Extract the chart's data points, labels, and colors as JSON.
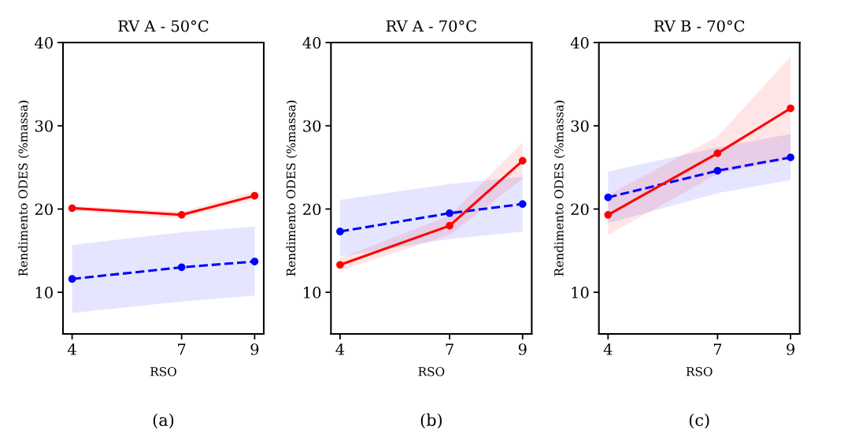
{
  "chart_data": [
    {
      "type": "line",
      "title": "RV A - 50°C",
      "xlabel": "RSO",
      "ylabel": "Rendimento ODES (%massa)",
      "annotations": [
        "(a)"
      ],
      "x": [
        4,
        7,
        9
      ],
      "xlim": [
        3.75,
        9.25
      ],
      "xticks": [
        4,
        7,
        9
      ],
      "ylim": [
        5,
        40
      ],
      "yticks": [
        10,
        20,
        30,
        40
      ],
      "marker": "circle",
      "grid": false,
      "legend": false,
      "series": [
        {
          "color": "#0000ff",
          "line_style": "dashed",
          "values": [
            11.6,
            13.0,
            13.7
          ],
          "lower": [
            7.5,
            8.9,
            9.6
          ],
          "upper": [
            15.7,
            17.2,
            17.9
          ]
        },
        {
          "color": "#ff0000",
          "line_style": "solid",
          "values": [
            20.1,
            19.3,
            21.6
          ],
          "lower": [
            19.8,
            18.9,
            21.1
          ],
          "upper": [
            20.4,
            19.7,
            22.1
          ]
        }
      ]
    },
    {
      "type": "line",
      "title": "RV A - 70°C",
      "xlabel": "RSO",
      "ylabel": "Rendimento ODES (%massa)",
      "annotations": [
        "(b)"
      ],
      "x": [
        4,
        7,
        9
      ],
      "xlim": [
        3.75,
        9.25
      ],
      "xticks": [
        4,
        7,
        9
      ],
      "ylim": [
        5,
        40
      ],
      "yticks": [
        10,
        20,
        30,
        40
      ],
      "marker": "circle",
      "grid": false,
      "legend": false,
      "series": [
        {
          "color": "#0000ff",
          "line_style": "dashed",
          "values": [
            17.3,
            19.5,
            20.6
          ],
          "lower": [
            14.3,
            16.4,
            17.3
          ],
          "upper": [
            21.1,
            23.0,
            23.9
          ]
        },
        {
          "color": "#ff0000",
          "line_style": "solid",
          "values": [
            13.3,
            18.0,
            25.8
          ],
          "lower": [
            12.6,
            16.9,
            23.6
          ],
          "upper": [
            14.1,
            19.2,
            28.0
          ]
        }
      ]
    },
    {
      "type": "line",
      "title": "RV B - 70°C",
      "xlabel": "RSO",
      "ylabel": "Rendimento ODES (%massa)",
      "annotations": [
        "(c)"
      ],
      "x": [
        4,
        7,
        9
      ],
      "xlim": [
        3.75,
        9.25
      ],
      "xticks": [
        4,
        7,
        9
      ],
      "ylim": [
        5,
        40
      ],
      "yticks": [
        10,
        20,
        30,
        40
      ],
      "marker": "circle",
      "grid": false,
      "legend": false,
      "series": [
        {
          "color": "#0000ff",
          "line_style": "dashed",
          "values": [
            21.4,
            24.6,
            26.2
          ],
          "lower": [
            18.3,
            21.9,
            23.5
          ],
          "upper": [
            24.5,
            27.4,
            29.0
          ]
        },
        {
          "color": "#ff0000",
          "line_style": "solid",
          "values": [
            19.3,
            26.7,
            32.1
          ],
          "lower": [
            16.9,
            24.2,
            26.0
          ],
          "upper": [
            21.7,
            28.7,
            38.3
          ]
        }
      ]
    }
  ]
}
